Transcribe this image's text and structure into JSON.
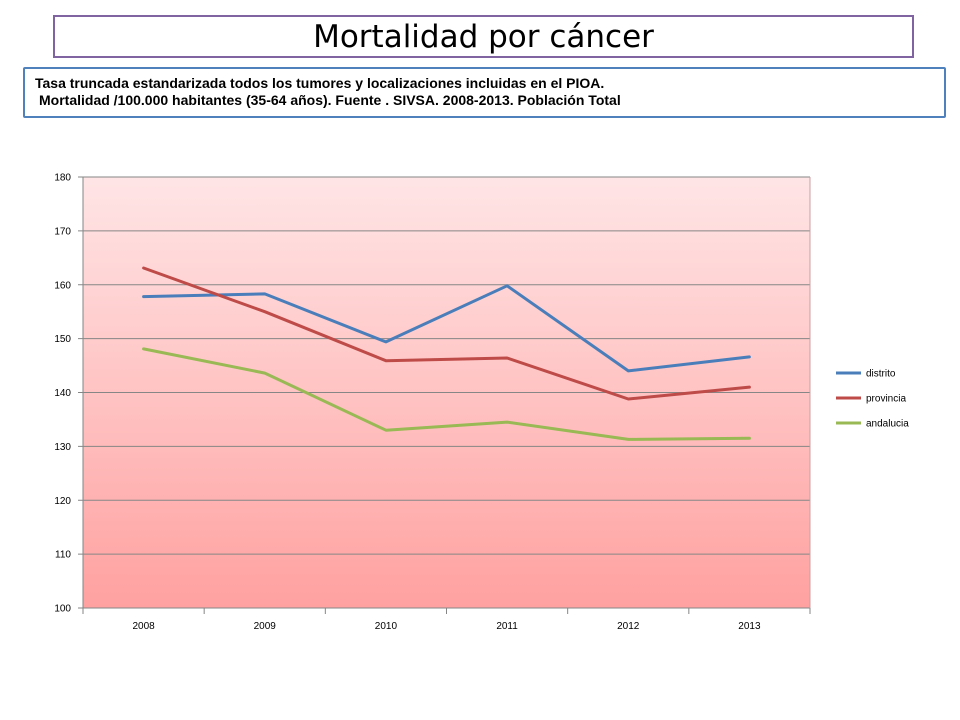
{
  "title": "Mortalidad por cáncer",
  "subtitle": {
    "line1": "Tasa truncada estandarizada todos los tumores y localizaciones incluidas en el PIOA.",
    "line2": "Mortalidad /100.000 habitantes (35-64 años). Fuente . SIVSA. 2008-2013. Población Total"
  },
  "chart_data": {
    "type": "line",
    "categories": [
      "2008",
      "2009",
      "2010",
      "2011",
      "2012",
      "2013"
    ],
    "series": [
      {
        "name": "distrito",
        "color": "#4a7ebb",
        "values": [
          157.8,
          158.3,
          149.4,
          159.8,
          144.0,
          146.6
        ]
      },
      {
        "name": "provincia",
        "color": "#be4b48",
        "values": [
          163.1,
          155.0,
          145.9,
          146.4,
          138.8,
          141.0
        ]
      },
      {
        "name": "andalucia",
        "color": "#98b954",
        "values": [
          148.1,
          143.6,
          133.0,
          134.5,
          131.3,
          131.5
        ]
      }
    ],
    "ylim": [
      100,
      180
    ],
    "yticks": [
      "100",
      "110",
      "120",
      "130",
      "140",
      "150",
      "160",
      "170",
      "180"
    ],
    "xlabel": "",
    "ylabel": "",
    "grid": true,
    "legend_position": "right",
    "plot_background": {
      "top": "#ffe5e6",
      "bottom": "#ffa1a0"
    }
  }
}
